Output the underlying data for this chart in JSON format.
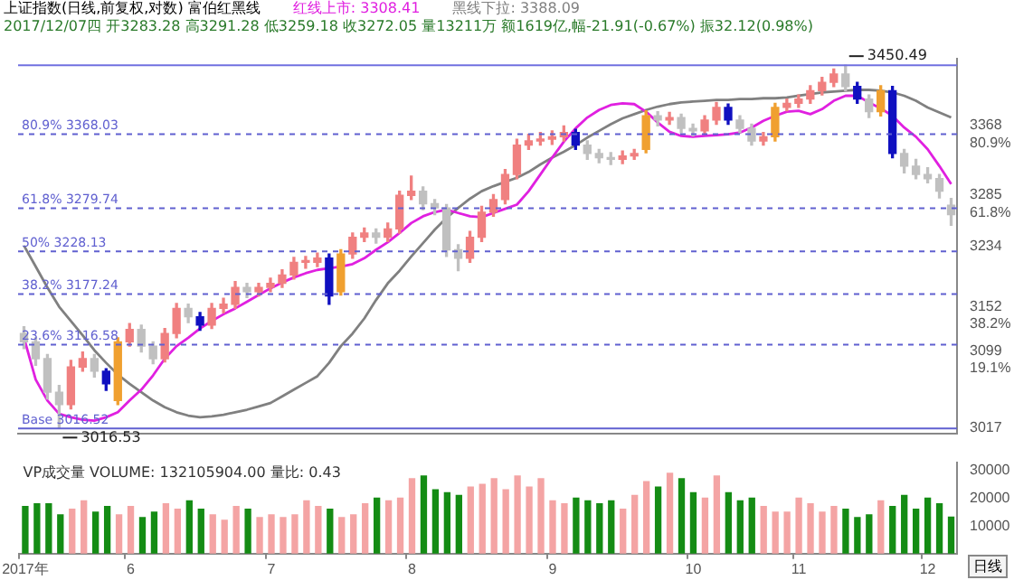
{
  "chart_data": [
    {
      "type": "candlestick",
      "title": "上证指数(日线,前复权,对数) 富伯红黑线",
      "subtitle": "2017/12/07四 开3283.28 高3291.28 低3259.18 收3272.05 量13211万 额1619亿,幅-21.91(-0.67%) 振32.12(0.98%)",
      "categories": [
        null,
        null,
        null,
        null,
        null,
        null,
        null,
        null,
        null,
        null,
        null,
        null,
        null,
        null,
        null,
        null,
        null,
        null,
        null,
        null,
        null,
        null,
        null,
        null,
        null,
        null,
        null,
        null,
        null,
        null,
        null,
        null,
        null,
        null,
        null,
        null,
        null,
        null,
        null,
        null,
        null,
        null,
        null,
        null,
        null,
        null,
        null,
        null,
        null,
        null,
        null,
        null,
        null,
        null,
        null,
        null,
        null,
        null,
        null,
        null,
        null,
        null,
        null,
        null,
        null,
        null,
        null,
        null,
        null,
        null,
        null,
        null,
        null,
        null,
        null,
        null,
        null,
        null,
        null,
        null
      ],
      "tick_labels": "y",
      "legend": "top",
      "marker": "none",
      "ohlc": [
        [
          3130,
          3138,
          3112,
          3120
        ],
        [
          3120,
          3125,
          3092,
          3100
        ],
        [
          3100,
          3105,
          3052,
          3060
        ],
        [
          3060,
          3068,
          3016.53,
          3045
        ],
        [
          3045,
          3098,
          3040,
          3090
        ],
        [
          3090,
          3108,
          3085,
          3100
        ],
        [
          3100,
          3105,
          3078,
          3085
        ],
        [
          3085,
          3088,
          3062,
          3070
        ],
        [
          3050,
          3125,
          3045,
          3120
        ],
        [
          3120,
          3142,
          3115,
          3135
        ],
        [
          3135,
          3140,
          3108,
          3115
        ],
        [
          3115,
          3120,
          3094,
          3100
        ],
        [
          3100,
          3136,
          3096,
          3130
        ],
        [
          3130,
          3166,
          3125,
          3160
        ],
        [
          3160,
          3165,
          3143,
          3150
        ],
        [
          3150,
          3155,
          3134,
          3140
        ],
        [
          3140,
          3166,
          3136,
          3160
        ],
        [
          3160,
          3172,
          3155,
          3165
        ],
        [
          3165,
          3192,
          3160,
          3185
        ],
        [
          3185,
          3190,
          3173,
          3180
        ],
        [
          3180,
          3190,
          3175,
          3185
        ],
        [
          3185,
          3196,
          3180,
          3190
        ],
        [
          3190,
          3206,
          3185,
          3200
        ],
        [
          3200,
          3221,
          3195,
          3215
        ],
        [
          3215,
          3222,
          3208,
          3215
        ],
        [
          3215,
          3226,
          3210,
          3220
        ],
        [
          3220,
          3225,
          3165,
          3175
        ],
        [
          3180,
          3230,
          3176,
          3225
        ],
        [
          3225,
          3250,
          3220,
          3245
        ],
        [
          3245,
          3256,
          3240,
          3250
        ],
        [
          3250,
          3255,
          3238,
          3245
        ],
        [
          3245,
          3262,
          3240,
          3255
        ],
        [
          3255,
          3300,
          3250,
          3295
        ],
        [
          3295,
          3318,
          3290,
          3300
        ],
        [
          3300,
          3305,
          3278,
          3285
        ],
        [
          3285,
          3290,
          3272,
          3280
        ],
        [
          3280,
          3284,
          3222,
          3230
        ],
        [
          3230,
          3236,
          3205,
          3220
        ],
        [
          3220,
          3252,
          3215,
          3245
        ],
        [
          3245,
          3282,
          3240,
          3275
        ],
        [
          3275,
          3296,
          3270,
          3290
        ],
        [
          3290,
          3326,
          3285,
          3320
        ],
        [
          3320,
          3362,
          3315,
          3355
        ],
        [
          3355,
          3368,
          3350,
          3360
        ],
        [
          3360,
          3370,
          3355,
          3362
        ],
        [
          3362,
          3372,
          3356,
          3365
        ],
        [
          3365,
          3378,
          3360,
          3370
        ],
        [
          3370,
          3374,
          3350,
          3355
        ],
        [
          3355,
          3360,
          3338,
          3345
        ],
        [
          3345,
          3350,
          3334,
          3340
        ],
        [
          3340,
          3346,
          3332,
          3338
        ],
        [
          3338,
          3348,
          3333,
          3342
        ],
        [
          3342,
          3350,
          3338,
          3345
        ],
        [
          3350,
          3396,
          3346,
          3390
        ],
        [
          3390,
          3395,
          3378,
          3385
        ],
        [
          3385,
          3394,
          3380,
          3388
        ],
        [
          3388,
          3392,
          3370,
          3375
        ],
        [
          3375,
          3380,
          3366,
          3372
        ],
        [
          3372,
          3390,
          3368,
          3385
        ],
        [
          3385,
          3406,
          3380,
          3400
        ],
        [
          3400,
          3404,
          3380,
          3385
        ],
        [
          3385,
          3390,
          3370,
          3375
        ],
        [
          3375,
          3380,
          3355,
          3360
        ],
        [
          3360,
          3370,
          3355,
          3365
        ],
        [
          3365,
          3405,
          3360,
          3400
        ],
        [
          3400,
          3410,
          3396,
          3405
        ],
        [
          3405,
          3415,
          3400,
          3410
        ],
        [
          3410,
          3426,
          3405,
          3420
        ],
        [
          3420,
          3436,
          3415,
          3430
        ],
        [
          3430,
          3446,
          3425,
          3440
        ],
        [
          3440,
          3450.49,
          3420,
          3425
        ],
        [
          3425,
          3430,
          3405,
          3410
        ],
        [
          3410,
          3415,
          3388,
          3395
        ],
        [
          3395,
          3426,
          3390,
          3420
        ],
        [
          3420,
          3425,
          3340,
          3345
        ],
        [
          3345,
          3350,
          3322,
          3330
        ],
        [
          3330,
          3338,
          3315,
          3320
        ],
        [
          3320,
          3328,
          3310,
          3315
        ],
        [
          3315,
          3320,
          3292,
          3300
        ],
        [
          3283.28,
          3291.28,
          3259.18,
          3272.05
        ]
      ],
      "colors": [
        "#c0c0c0",
        "#c0c0c0",
        "#c0c0c0",
        "#c0c0c0",
        "#f08080",
        "#f08080",
        "#c0c0c0",
        "#1010c0",
        "#f0a030",
        "#f08080",
        "#c0c0c0",
        "#c0c0c0",
        "#f08080",
        "#f08080",
        "#c0c0c0",
        "#1010c0",
        "#f08080",
        "#f08080",
        "#f08080",
        "#c0c0c0",
        "#f08080",
        "#f08080",
        "#f08080",
        "#f08080",
        "#f08080",
        "#f08080",
        "#1010c0",
        "#f0a030",
        "#f08080",
        "#f08080",
        "#c0c0c0",
        "#f08080",
        "#f08080",
        "#f08080",
        "#c0c0c0",
        "#c0c0c0",
        "#c0c0c0",
        "#c0c0c0",
        "#f08080",
        "#f08080",
        "#f08080",
        "#f08080",
        "#f08080",
        "#f08080",
        "#f08080",
        "#f08080",
        "#f08080",
        "#1010c0",
        "#c0c0c0",
        "#c0c0c0",
        "#c0c0c0",
        "#f08080",
        "#f08080",
        "#f0a030",
        "#c0c0c0",
        "#f08080",
        "#c0c0c0",
        "#c0c0c0",
        "#f08080",
        "#f08080",
        "#1010c0",
        "#c0c0c0",
        "#c0c0c0",
        "#f08080",
        "#f0a030",
        "#f08080",
        "#f08080",
        "#f08080",
        "#f08080",
        "#f08080",
        "#c0c0c0",
        "#1010c0",
        "#c0c0c0",
        "#f0a030",
        "#1010c0",
        "#c0c0c0",
        "#c0c0c0",
        "#c0c0c0",
        "#c0c0c0",
        "#c0c0c0"
      ],
      "series": [
        {
          "type": "line",
          "name": "红线上市: 3308.41",
          "color": "#e020e0",
          "values": [
            3125,
            3075,
            3050,
            3034,
            3030,
            3027,
            3026,
            3030,
            3036,
            3050,
            3063,
            3080,
            3100,
            3115,
            3125,
            3136,
            3145,
            3153,
            3160,
            3168,
            3176,
            3184,
            3191,
            3197,
            3202,
            3206,
            3208,
            3210,
            3213,
            3220,
            3230,
            3239,
            3250,
            3262,
            3270,
            3275,
            3278,
            3274,
            3270,
            3269,
            3274,
            3279,
            3284,
            3300,
            3320,
            3340,
            3359,
            3375,
            3388,
            3397,
            3403,
            3405,
            3404,
            3395,
            3382,
            3371,
            3366,
            3365,
            3366,
            3367,
            3368,
            3370,
            3376,
            3384,
            3390,
            3395,
            3396,
            3392,
            3398,
            3408,
            3414,
            3414,
            3406,
            3399,
            3390,
            3376,
            3365,
            3350,
            3330,
            3308.41
          ]
        },
        {
          "type": "line",
          "name": "黑线下拉: 3388.09",
          "color": "#808080",
          "values": [
            3235,
            3210,
            3185,
            3162,
            3145,
            3128,
            3110,
            3095,
            3081,
            3070,
            3060,
            3050,
            3042,
            3036,
            3032,
            3030,
            3031,
            3033,
            3036,
            3039,
            3043,
            3047,
            3055,
            3063,
            3071,
            3079,
            3095,
            3115,
            3130,
            3148,
            3170,
            3190,
            3205,
            3222,
            3238,
            3254,
            3268,
            3280,
            3291,
            3300,
            3306,
            3311,
            3316,
            3323,
            3332,
            3340,
            3347,
            3355,
            3364,
            3372,
            3380,
            3387,
            3392,
            3397,
            3401,
            3404,
            3406,
            3407,
            3408,
            3409,
            3409,
            3410,
            3410,
            3411,
            3411,
            3412,
            3414,
            3416,
            3418,
            3419,
            3420,
            3421,
            3421,
            3420,
            3418,
            3414,
            3408,
            3400,
            3394,
            3388.09
          ]
        }
      ],
      "ylim": [
        3010,
        3458
      ],
      "yticks": [
        3017,
        {
          "value": 3099,
          "label": "3099 19.1%"
        },
        {
          "value": 3152,
          "label": "3152 38.2%"
        },
        3234,
        {
          "value": 3285,
          "label": "3285 61.8%"
        },
        {
          "value": 3368,
          "label": "3368 80.9%"
        }
      ],
      "ref_lines": [
        {
          "axis": "y",
          "value": 3450.49,
          "label": null,
          "color": "#7070e0",
          "line_style": "solid"
        },
        {
          "axis": "y",
          "value": 3368.03,
          "label": "80.9% 3368.03",
          "color": "#6060d0",
          "line_style": "dashed"
        },
        {
          "axis": "y",
          "value": 3279.74,
          "label": "61.8% 3279.74",
          "color": "#6060d0",
          "line_style": "dashed"
        },
        {
          "axis": "y",
          "value": 3228.13,
          "label": "50% 3228.13",
          "color": "#6060d0",
          "line_style": "dashed"
        },
        {
          "axis": "y",
          "value": 3177.24,
          "label": "38.2% 3177.24",
          "color": "#6060d0",
          "line_style": "dashed"
        },
        {
          "axis": "y",
          "value": 3116.58,
          "label": "23.6% 3116.58",
          "color": "#6060d0",
          "line_style": "dashed"
        },
        {
          "axis": "y",
          "value": 3016.52,
          "label": "Base 3016.52",
          "color": "#6060d0",
          "line_style": "solid"
        }
      ],
      "annotations": [
        {
          "text": "3450.49",
          "y": 3450.49
        },
        {
          "text": "3016.53",
          "y": 3016.53
        }
      ]
    },
    {
      "type": "bar",
      "title": "VP成交量 VOLUME: 132105904.00 量比: 0.43",
      "categories": [
        "2017年",
        null,
        null,
        null,
        null,
        null,
        null,
        null,
        null,
        "6",
        null,
        null,
        null,
        null,
        null,
        null,
        null,
        null,
        null,
        null,
        null,
        "7",
        null,
        null,
        null,
        null,
        null,
        null,
        null,
        null,
        null,
        null,
        null,
        "8",
        null,
        null,
        null,
        null,
        null,
        null,
        null,
        null,
        null,
        null,
        null,
        "9",
        null,
        null,
        null,
        null,
        null,
        null,
        null,
        null,
        null,
        null,
        null,
        "10",
        null,
        null,
        null,
        null,
        null,
        null,
        null,
        null,
        "11",
        null,
        null,
        null,
        null,
        null,
        null,
        null,
        null,
        null,
        null,
        "12",
        null,
        null
      ],
      "values": [
        17000,
        18000,
        18000,
        14000,
        16000,
        19000,
        15000,
        17000,
        14000,
        17000,
        13000,
        15000,
        18000,
        16000,
        19000,
        16000,
        14000,
        12000,
        17000,
        16000,
        13000,
        14000,
        13000,
        14000,
        19000,
        17000,
        16000,
        13000,
        14000,
        18000,
        20000,
        19000,
        20000,
        27000,
        28000,
        23000,
        22000,
        21000,
        24000,
        25000,
        27000,
        23000,
        28000,
        24000,
        27000,
        19000,
        18000,
        20000,
        19000,
        18000,
        19000,
        16000,
        21000,
        26000,
        24000,
        29000,
        27000,
        22000,
        20000,
        28000,
        22000,
        19000,
        20000,
        17000,
        15000,
        15000,
        20000,
        18000,
        15000,
        17000,
        16000,
        13000,
        14000,
        19000,
        17000,
        21000,
        16000,
        20000,
        18000,
        13211
      ],
      "colors": [
        "#148c14",
        "#148c14",
        "#148c14",
        "#148c14",
        "#f4a4a4",
        "#f4a4a4",
        "#148c14",
        "#148c14",
        "#f4a4a4",
        "#f4a4a4",
        "#148c14",
        "#148c14",
        "#f4a4a4",
        "#f4a4a4",
        "#148c14",
        "#148c14",
        "#f4a4a4",
        "#f4a4a4",
        "#f4a4a4",
        "#148c14",
        "#f4a4a4",
        "#f4a4a4",
        "#f4a4a4",
        "#f4a4a4",
        "#f4a4a4",
        "#f4a4a4",
        "#148c14",
        "#f4a4a4",
        "#f4a4a4",
        "#f4a4a4",
        "#148c14",
        "#f4a4a4",
        "#f4a4a4",
        "#f4a4a4",
        "#148c14",
        "#148c14",
        "#148c14",
        "#148c14",
        "#f4a4a4",
        "#f4a4a4",
        "#f4a4a4",
        "#f4a4a4",
        "#f4a4a4",
        "#f4a4a4",
        "#f4a4a4",
        "#f4a4a4",
        "#f4a4a4",
        "#148c14",
        "#148c14",
        "#148c14",
        "#148c14",
        "#f4a4a4",
        "#f4a4a4",
        "#f4a4a4",
        "#148c14",
        "#f4a4a4",
        "#148c14",
        "#148c14",
        "#f4a4a4",
        "#f4a4a4",
        "#148c14",
        "#148c14",
        "#148c14",
        "#f4a4a4",
        "#f4a4a4",
        "#f4a4a4",
        "#f4a4a4",
        "#f4a4a4",
        "#f4a4a4",
        "#f4a4a4",
        "#148c14",
        "#148c14",
        "#148c14",
        "#f4a4a4",
        "#148c14",
        "#148c14",
        "#148c14",
        "#148c14",
        "#148c14",
        "#148c14"
      ],
      "ylim": [
        0,
        33000
      ],
      "yticks": [
        10000,
        20000,
        30000
      ],
      "annotations": [
        "日线"
      ]
    }
  ]
}
